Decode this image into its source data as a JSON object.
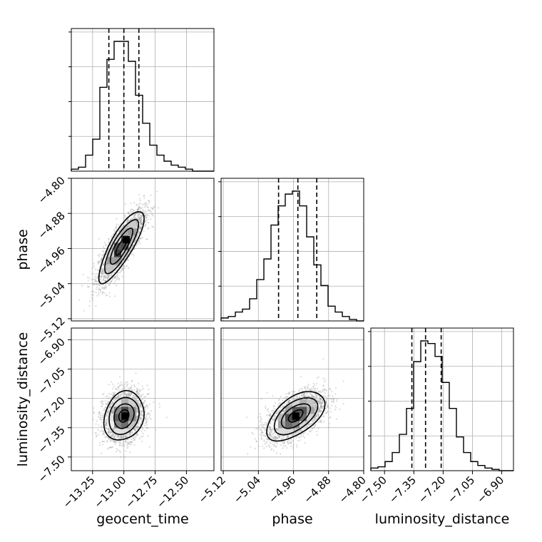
{
  "chart_data": {
    "type": "corner",
    "parameters": [
      {
        "key": "geocent_time",
        "label": "geocent_time",
        "range": [
          -13.42,
          -12.28
        ],
        "ticks": [
          -13.25,
          -13.0,
          -12.75,
          -12.5
        ],
        "tick_labels": [
          "−13.25",
          "−13.00",
          "−12.75",
          "−12.50"
        ],
        "quantiles": [
          -13.12,
          -13.0,
          -12.88
        ]
      },
      {
        "key": "phase",
        "label": "phase",
        "range": [
          -5.125,
          -4.8
        ],
        "ticks": [
          -5.12,
          -5.04,
          -4.96,
          -4.88,
          -4.8
        ],
        "tick_labels": [
          "−5.12",
          "−5.04",
          "−4.96",
          "−4.88",
          "−4.80"
        ],
        "quantiles": [
          -4.994,
          -4.95,
          -4.907
        ]
      },
      {
        "key": "luminosity_distance",
        "label": "luminosity_distance",
        "range": [
          -7.57,
          -6.84
        ],
        "ticks": [
          -7.5,
          -7.35,
          -7.2,
          -7.05,
          -6.9
        ],
        "tick_labels": [
          "−7.50",
          "−7.35",
          "−7.20",
          "−7.05",
          "−6.90"
        ],
        "quantiles": [
          -7.36,
          -7.29,
          -7.21
        ]
      }
    ],
    "histograms": [
      {
        "param": "geocent_time",
        "bins": 20,
        "counts": [
          1,
          2,
          8,
          16,
          42,
          56,
          65,
          65,
          55,
          38,
          24,
          13,
          8,
          5,
          3,
          2,
          1,
          0,
          0,
          0
        ]
      },
      {
        "param": "phase",
        "bins": 20,
        "counts": [
          2,
          3,
          6,
          8,
          15,
          28,
          42,
          65,
          78,
          86,
          88,
          78,
          57,
          38,
          24,
          10,
          6,
          3,
          1,
          0
        ]
      },
      {
        "param": "luminosity_distance",
        "bins": 20,
        "counts": [
          2,
          3,
          7,
          14,
          28,
          48,
          84,
          100,
          98,
          88,
          68,
          48,
          26,
          14,
          7,
          4,
          2,
          1,
          0,
          0
        ]
      }
    ],
    "pairs": [
      {
        "x": "geocent_time",
        "y": "phase",
        "center": [
          -13.02,
          -4.955
        ],
        "sigma": [
          0.09,
          0.041
        ],
        "rho": 0.82,
        "peak": [
          -12.98,
          -4.94
        ]
      },
      {
        "x": "geocent_time",
        "y": "luminosity_distance",
        "center": [
          -13.0,
          -7.29
        ],
        "sigma": [
          0.08,
          0.063
        ],
        "rho": 0.18,
        "peak": [
          -12.99,
          -7.29
        ]
      },
      {
        "x": "phase",
        "y": "luminosity_distance",
        "center": [
          -4.955,
          -7.29
        ],
        "sigma": [
          0.033,
          0.063
        ],
        "rho": 0.55,
        "peak": [
          -4.955,
          -7.29
        ]
      }
    ],
    "contour_levels_sigma": [
      0.5,
      1.0,
      1.5,
      2.0
    ],
    "grid": true,
    "colors": {
      "hist": "#000000",
      "points": "#9a9a9a",
      "density": "#000000"
    }
  }
}
